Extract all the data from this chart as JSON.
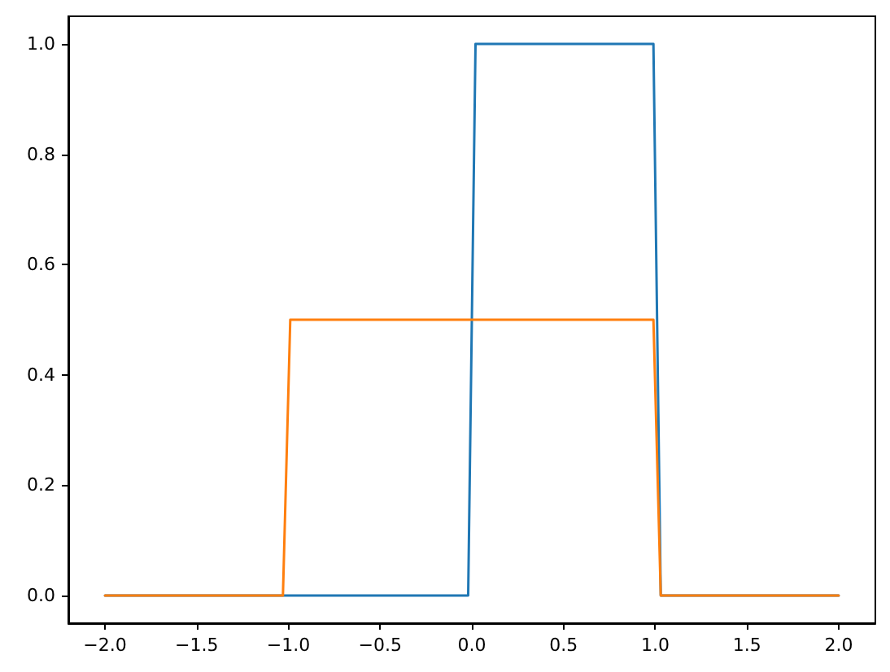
{
  "chart_data": {
    "type": "line",
    "series": [
      {
        "color": "#1f77b4",
        "x": [
          -2,
          -0.02,
          0.02,
          0.99,
          1.03,
          2
        ],
        "values": [
          0,
          0,
          1,
          1,
          0,
          0
        ]
      },
      {
        "color": "#ff7f0e",
        "x": [
          -2,
          -1.03,
          -0.99,
          0.99,
          1.03,
          2
        ],
        "values": [
          0,
          0,
          0.5,
          0.5,
          0,
          0
        ]
      }
    ],
    "xlim": [
      -2.2,
      2.2
    ],
    "xticks": [
      {
        "value": -2,
        "label": "−2.0"
      },
      {
        "value": -1.5,
        "label": "−1.5"
      },
      {
        "value": -1,
        "label": "−1.0"
      },
      {
        "value": -0.5,
        "label": "−0.5"
      },
      {
        "value": 0,
        "label": "0.0"
      },
      {
        "value": 0.5,
        "label": "0.5"
      },
      {
        "value": 1,
        "label": "1.0"
      },
      {
        "value": 1.5,
        "label": "1.5"
      },
      {
        "value": 2,
        "label": "2.0"
      }
    ],
    "ylim": [
      -0.05,
      1.05
    ],
    "yticks": [
      {
        "value": 0,
        "label": "0.0"
      },
      {
        "value": 0.2,
        "label": "0.2"
      },
      {
        "value": 0.4,
        "label": "0.4"
      },
      {
        "value": 0.6,
        "label": "0.6"
      },
      {
        "value": 0.8,
        "label": "0.8"
      },
      {
        "value": 1,
        "label": "1.0"
      }
    ],
    "grid": false,
    "marker": "none",
    "line_style": "solid"
  }
}
